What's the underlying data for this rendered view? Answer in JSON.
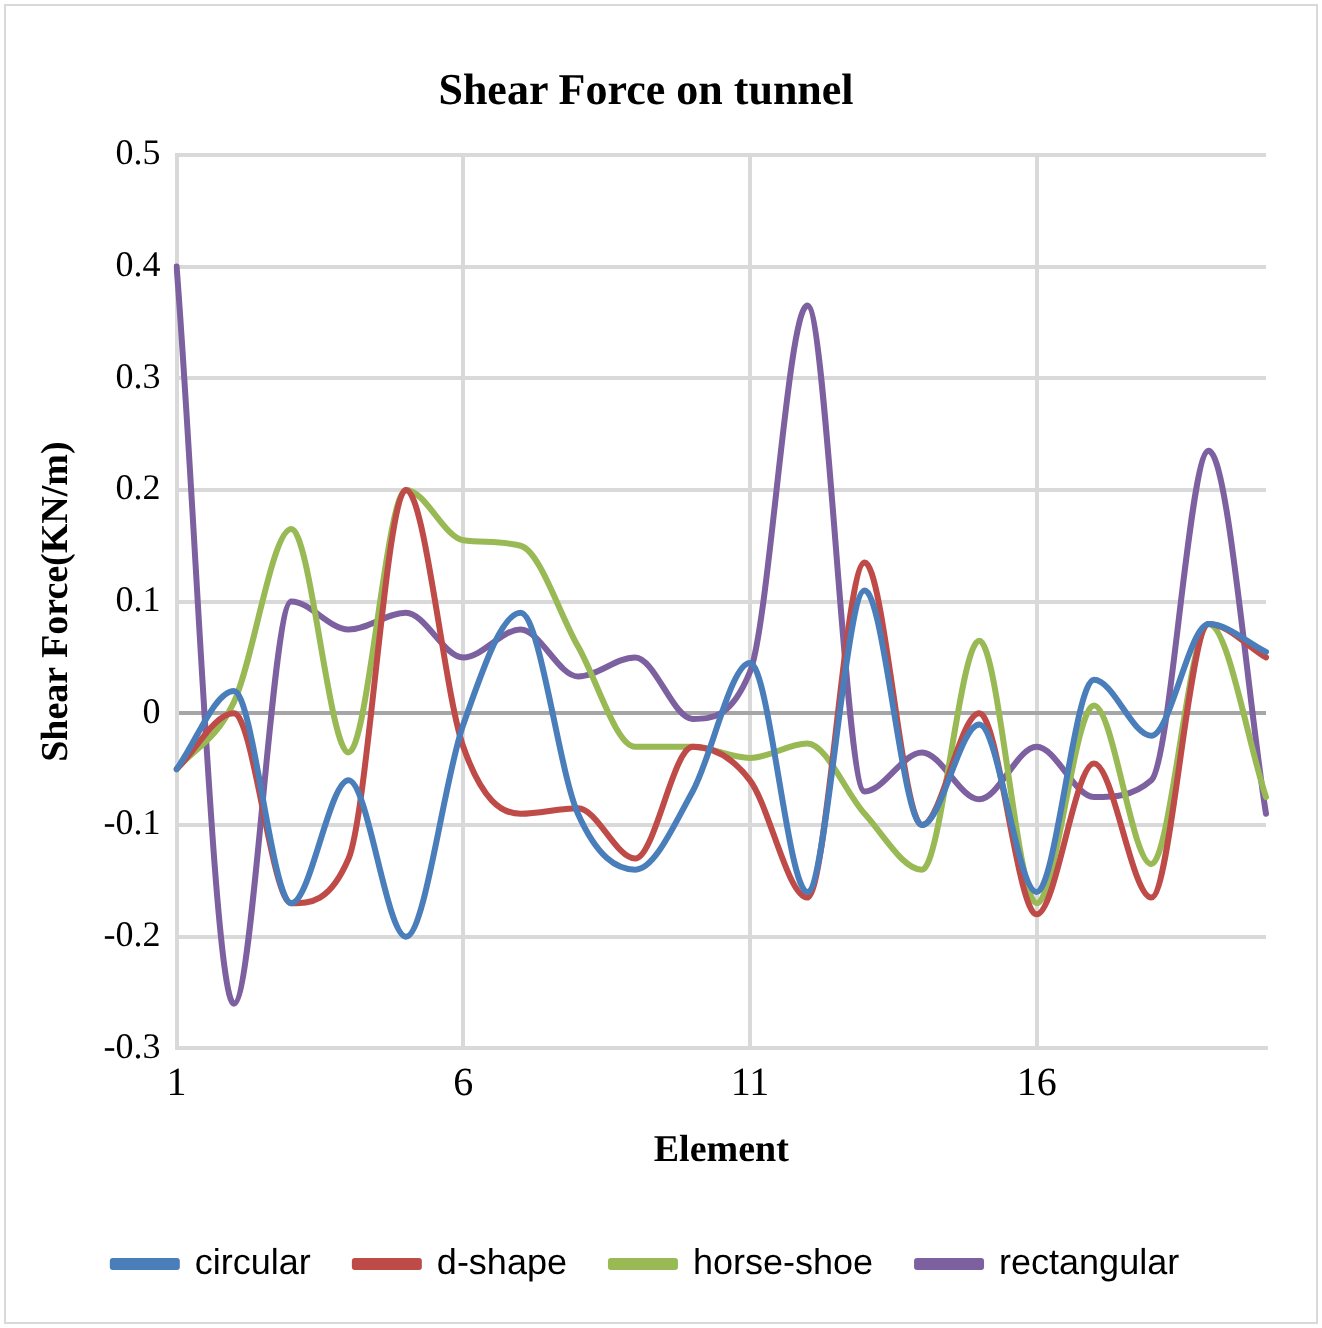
{
  "chart_data": {
    "type": "line",
    "title": "Shear Force on tunnel",
    "xlabel": "Element",
    "ylabel": "Shear Force(KN/m)",
    "categories": [
      "1",
      null,
      null,
      null,
      null,
      "6",
      null,
      null,
      null,
      null,
      "11",
      null,
      null,
      null,
      null,
      "16",
      null,
      null,
      null,
      null
    ],
    "series": [
      {
        "name": "circular",
        "color": "#4a7ebb",
        "values": [
          -0.05,
          0.02,
          -0.17,
          -0.06,
          -0.2,
          -0.01,
          0.09,
          -0.09,
          -0.14,
          -0.07,
          0.045,
          -0.16,
          0.11,
          -0.1,
          -0.01,
          -0.16,
          0.03,
          -0.02,
          0.08,
          0.055
        ]
      },
      {
        "name": "d-shape",
        "color": "#be4b48",
        "values": [
          -0.05,
          0,
          -0.17,
          -0.13,
          0.2,
          -0.03,
          -0.09,
          -0.085,
          -0.13,
          -0.03,
          -0.06,
          -0.165,
          0.135,
          -0.1,
          0,
          -0.18,
          -0.045,
          -0.165,
          0.08,
          0.05
        ]
      },
      {
        "name": "horse-shoe",
        "color": "#98b954",
        "values": [
          -0.05,
          0.01,
          0.165,
          -0.035,
          0.2,
          0.155,
          0.15,
          0.06,
          -0.03,
          -0.03,
          -0.04,
          -0.027,
          -0.09,
          -0.14,
          0.065,
          -0.17,
          0.007,
          -0.135,
          0.08,
          -0.075
        ]
      },
      {
        "name": "rectangular",
        "color": "#7d60a0",
        "values": [
          0.4,
          -0.26,
          0.1,
          0.075,
          0.09,
          0.05,
          0.075,
          0.033,
          0.05,
          -0.005,
          0.037,
          0.365,
          -0.07,
          -0.035,
          -0.077,
          -0.03,
          -0.075,
          -0.06,
          0.235,
          -0.09
        ]
      }
    ],
    "ylim": [
      -0.3,
      0.5
    ],
    "yticks": [
      -0.3,
      -0.2,
      -0.1,
      0,
      0.1,
      0.2,
      0.3,
      0.4,
      0.5
    ],
    "grid": true,
    "legend": "bottom",
    "marker": "none",
    "line_style": "solid"
  }
}
